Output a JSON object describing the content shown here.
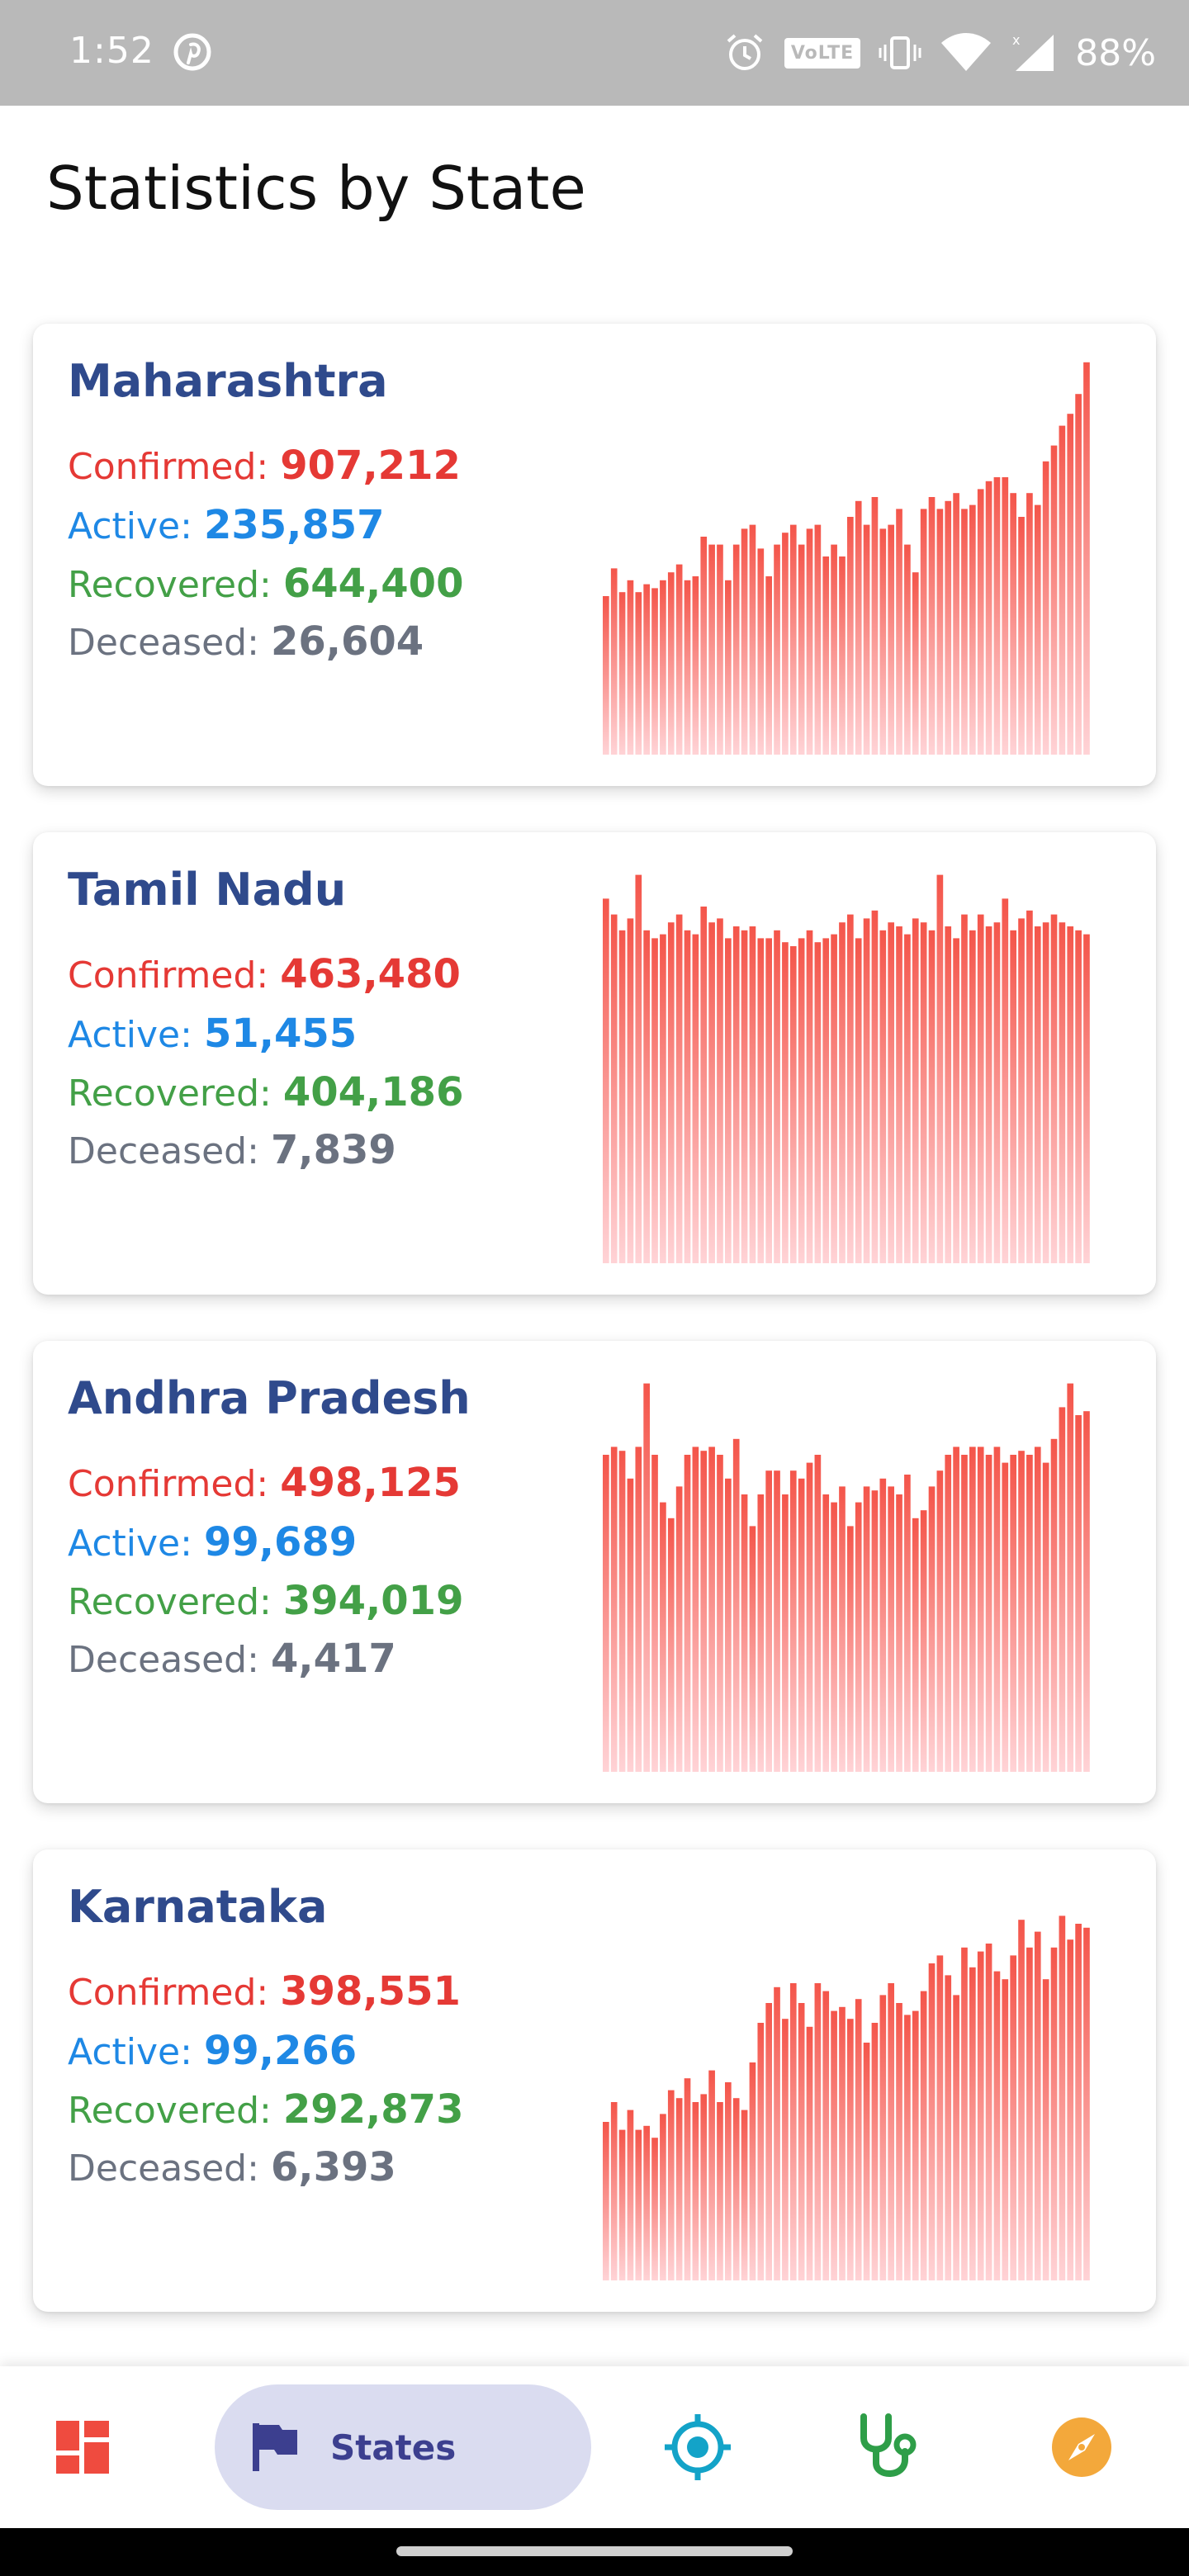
{
  "status_bar": {
    "time": "1:52",
    "volte": "VoLTE",
    "battery": "88%",
    "icons": [
      "pinterest-icon",
      "alarm-icon",
      "volte-icon",
      "vibrate-icon",
      "wifi-icon",
      "signal-icon"
    ]
  },
  "page": {
    "title": "Statistics by State"
  },
  "labels": {
    "confirmed": "Confirmed:",
    "active": "Active:",
    "recovered": "Recovered:",
    "deceased": "Deceased:"
  },
  "colors": {
    "confirmed": "#e53935",
    "active": "#1e88e5",
    "recovered": "#43a047",
    "deceased": "#6b7280",
    "state_name": "#2f4a8c",
    "chart_top": "#f4554a",
    "chart_bottom": "#ffd3d6",
    "nav_pill": "#dadcf0"
  },
  "states": [
    {
      "name": "Maharashtra",
      "confirmed": "907,212",
      "active": "235,857",
      "recovered": "644,400",
      "deceased": "26,604",
      "chart_data": {
        "type": "bar",
        "title": "",
        "note": "daily new cases, relative scale",
        "ylim": [
          0,
          100
        ],
        "values": [
          40,
          47,
          41,
          44,
          41,
          43,
          42,
          44,
          46,
          48,
          44,
          45,
          55,
          53,
          53,
          44,
          53,
          57,
          58,
          52,
          45,
          53,
          56,
          58,
          53,
          57,
          58,
          50,
          53,
          50,
          60,
          64,
          58,
          65,
          57,
          58,
          62,
          53,
          46,
          62,
          65,
          62,
          64,
          66,
          62,
          63,
          67,
          69,
          70,
          70,
          66,
          60,
          66,
          63,
          74,
          78,
          83,
          86,
          91,
          99
        ]
      }
    },
    {
      "name": "Tamil Nadu",
      "confirmed": "463,480",
      "active": "51,455",
      "recovered": "404,186",
      "deceased": "7,839",
      "chart_data": {
        "type": "bar",
        "title": "",
        "note": "daily new cases, relative scale",
        "ylim": [
          0,
          100
        ],
        "values": [
          92,
          88,
          84,
          87,
          98,
          84,
          82,
          83,
          86,
          88,
          84,
          83,
          90,
          86,
          87,
          82,
          85,
          84,
          85,
          82,
          82,
          84,
          81,
          80,
          82,
          84,
          81,
          82,
          83,
          86,
          88,
          82,
          87,
          89,
          84,
          86,
          85,
          83,
          87,
          86,
          84,
          98,
          85,
          82,
          88,
          84,
          88,
          85,
          86,
          92,
          84,
          87,
          89,
          85,
          86,
          88,
          86,
          85,
          84,
          83
        ]
      }
    },
    {
      "name": "Andhra Pradesh",
      "confirmed": "498,125",
      "active": "99,689",
      "recovered": "394,019",
      "deceased": "4,417",
      "chart_data": {
        "type": "bar",
        "title": "",
        "note": "daily new cases, relative scale",
        "ylim": [
          0,
          100
        ],
        "values": [
          80,
          82,
          81,
          74,
          82,
          98,
          80,
          68,
          64,
          72,
          80,
          82,
          81,
          82,
          80,
          74,
          84,
          70,
          62,
          70,
          76,
          76,
          70,
          76,
          74,
          78,
          80,
          70,
          68,
          72,
          62,
          68,
          72,
          71,
          74,
          72,
          70,
          75,
          64,
          66,
          72,
          76,
          80,
          82,
          80,
          82,
          82,
          80,
          82,
          78,
          80,
          81,
          80,
          82,
          78,
          84,
          92,
          98,
          90,
          91
        ]
      }
    },
    {
      "name": "Karnataka",
      "confirmed": "398,551",
      "active": "99,266",
      "recovered": "292,873",
      "deceased": "6,393",
      "chart_data": {
        "type": "bar",
        "title": "",
        "note": "daily new cases, relative scale",
        "ylim": [
          0,
          100
        ],
        "values": [
          40,
          45,
          38,
          43,
          38,
          39,
          36,
          42,
          48,
          46,
          51,
          45,
          47,
          53,
          45,
          50,
          46,
          43,
          55,
          65,
          70,
          74,
          66,
          75,
          70,
          64,
          75,
          73,
          68,
          69,
          66,
          71,
          60,
          65,
          72,
          75,
          70,
          67,
          68,
          73,
          80,
          82,
          77,
          72,
          84,
          79,
          83,
          85,
          78,
          76,
          82,
          91,
          84,
          88,
          76,
          84,
          92,
          86,
          90,
          89
        ]
      }
    }
  ],
  "bottom_nav": {
    "items": [
      {
        "name": "dashboard",
        "icon": "dashboard-icon",
        "color": "#ef4b3f"
      },
      {
        "name": "states",
        "icon": "flag-icon",
        "label": "States",
        "color": "#3c3f8f",
        "selected": true
      },
      {
        "name": "location",
        "icon": "crosshair-icon",
        "color": "#13a3c8"
      },
      {
        "name": "health",
        "icon": "stethoscope-icon",
        "color": "#2e9e48"
      },
      {
        "name": "explore",
        "icon": "compass-icon",
        "color": "#f3a83b"
      }
    ]
  }
}
